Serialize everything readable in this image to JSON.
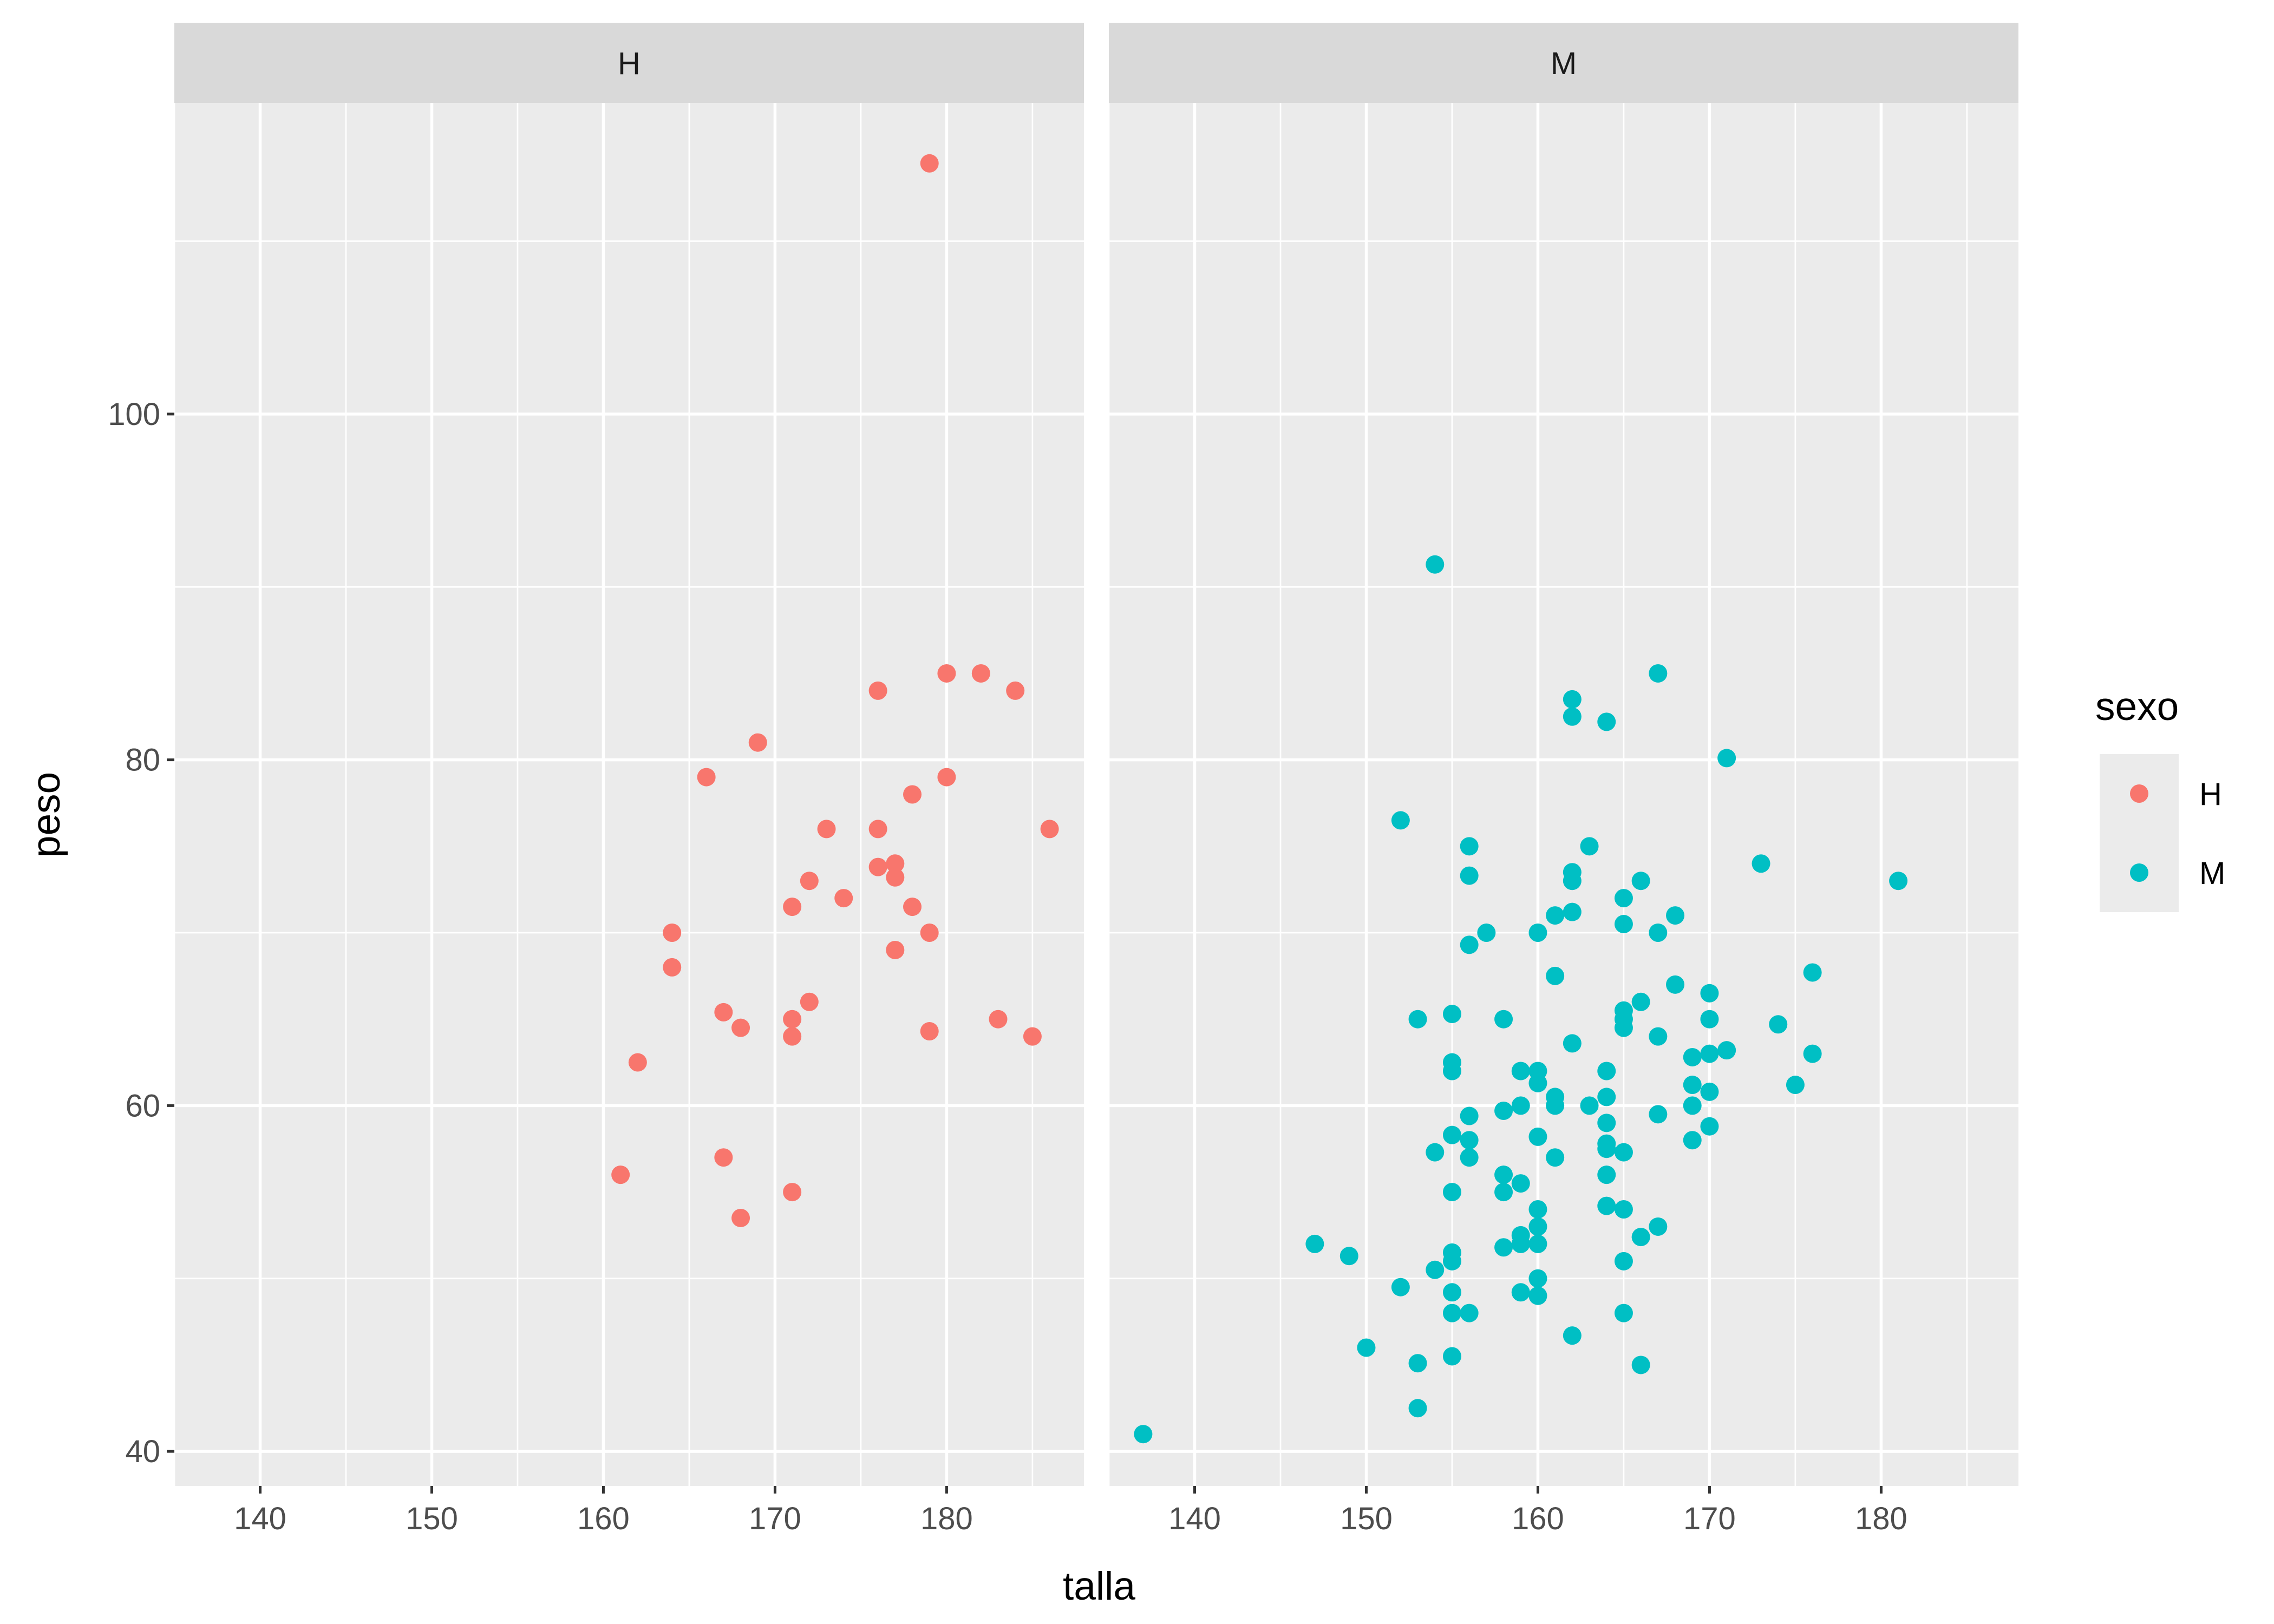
{
  "chart_data": {
    "type": "scatter",
    "facet_by": "sexo",
    "xlabel": "talla",
    "ylabel": "peso",
    "xlim": [
      135,
      188
    ],
    "ylim": [
      38,
      118
    ],
    "x_ticks": [
      140,
      150,
      160,
      170,
      180
    ],
    "y_ticks": [
      40,
      60,
      80,
      100
    ],
    "grid": true,
    "legend": {
      "title": "sexo",
      "position": "right",
      "entries": [
        {
          "label": "H",
          "color": "#F8766D"
        },
        {
          "label": "M",
          "color": "#00BFC4"
        }
      ]
    },
    "panels": [
      {
        "label": "H",
        "series": "H",
        "color": "#F8766D",
        "points": [
          [
            179,
            114.5
          ],
          [
            161,
            56
          ],
          [
            162,
            62.5
          ],
          [
            164,
            70
          ],
          [
            164,
            68
          ],
          [
            166,
            79
          ],
          [
            167,
            65.4
          ],
          [
            167,
            57
          ],
          [
            168,
            64.5
          ],
          [
            168,
            53.5
          ],
          [
            169,
            81
          ],
          [
            171,
            71.5
          ],
          [
            171,
            65
          ],
          [
            171,
            64
          ],
          [
            171,
            55
          ],
          [
            172,
            73
          ],
          [
            172,
            66
          ],
          [
            173,
            76
          ],
          [
            174,
            72
          ],
          [
            176,
            84
          ],
          [
            176,
            76
          ],
          [
            176,
            73.8
          ],
          [
            177,
            74
          ],
          [
            177,
            73.2
          ],
          [
            177,
            69
          ],
          [
            178,
            78
          ],
          [
            178,
            71.5
          ],
          [
            179,
            70
          ],
          [
            179,
            64.3
          ],
          [
            180,
            85
          ],
          [
            180,
            79
          ],
          [
            182,
            85
          ],
          [
            183,
            65
          ],
          [
            184,
            84
          ],
          [
            185,
            64
          ],
          [
            186,
            76
          ]
        ]
      },
      {
        "label": "M",
        "series": "M",
        "color": "#00BFC4",
        "points": [
          [
            154,
            91.3
          ],
          [
            167,
            85
          ],
          [
            162,
            83.5
          ],
          [
            162,
            82.5
          ],
          [
            164,
            82.2
          ],
          [
            171,
            80.1
          ],
          [
            152,
            76.5
          ],
          [
            156,
            75
          ],
          [
            163,
            75
          ],
          [
            173,
            74
          ],
          [
            156,
            73.3
          ],
          [
            162,
            73.5
          ],
          [
            162,
            73
          ],
          [
            166,
            73
          ],
          [
            181,
            73
          ],
          [
            165,
            72
          ],
          [
            161,
            71
          ],
          [
            162,
            71.2
          ],
          [
            168,
            71
          ],
          [
            157,
            70
          ],
          [
            160,
            70
          ],
          [
            165,
            70.5
          ],
          [
            167,
            70
          ],
          [
            156,
            69.3
          ],
          [
            161,
            67.5
          ],
          [
            176,
            67.7
          ],
          [
            168,
            67
          ],
          [
            170,
            66.5
          ],
          [
            166,
            66
          ],
          [
            153,
            65
          ],
          [
            155,
            65.3
          ],
          [
            158,
            65
          ],
          [
            165,
            65.5
          ],
          [
            165,
            65
          ],
          [
            165,
            64.5
          ],
          [
            170,
            65
          ],
          [
            174,
            64.7
          ],
          [
            162,
            63.6
          ],
          [
            167,
            64
          ],
          [
            169,
            62.8
          ],
          [
            170,
            63
          ],
          [
            171,
            63.2
          ],
          [
            176,
            63
          ],
          [
            155,
            62.5
          ],
          [
            155,
            62
          ],
          [
            159,
            62
          ],
          [
            160,
            62
          ],
          [
            160,
            61.3
          ],
          [
            164,
            62
          ],
          [
            169,
            61.2
          ],
          [
            175,
            61.2
          ],
          [
            161,
            60.5
          ],
          [
            161,
            60
          ],
          [
            164,
            60.5
          ],
          [
            159,
            60
          ],
          [
            163,
            60
          ],
          [
            169,
            60
          ],
          [
            170,
            60.8
          ],
          [
            156,
            59.4
          ],
          [
            158,
            59.7
          ],
          [
            164,
            59
          ],
          [
            167,
            59.5
          ],
          [
            170,
            58.8
          ],
          [
            155,
            58.3
          ],
          [
            156,
            58
          ],
          [
            160,
            58.2
          ],
          [
            164,
            57.8
          ],
          [
            164,
            57.5
          ],
          [
            165,
            57.3
          ],
          [
            169,
            58
          ],
          [
            154,
            57.3
          ],
          [
            156,
            57
          ],
          [
            161,
            57
          ],
          [
            158,
            56
          ],
          [
            159,
            55.5
          ],
          [
            164,
            56
          ],
          [
            155,
            55
          ],
          [
            158,
            55
          ],
          [
            160,
            54
          ],
          [
            164,
            54.2
          ],
          [
            165,
            54
          ],
          [
            160,
            53
          ],
          [
            167,
            53
          ],
          [
            159,
            52.5
          ],
          [
            159,
            52
          ],
          [
            160,
            52
          ],
          [
            166,
            52.4
          ],
          [
            147,
            52
          ],
          [
            149,
            51.3
          ],
          [
            155,
            51.5
          ],
          [
            155,
            51
          ],
          [
            158,
            51.8
          ],
          [
            165,
            51
          ],
          [
            154,
            50.5
          ],
          [
            160,
            50
          ],
          [
            152,
            49.5
          ],
          [
            155,
            49.2
          ],
          [
            159,
            49.2
          ],
          [
            160,
            49
          ],
          [
            155,
            48
          ],
          [
            156,
            48
          ],
          [
            165,
            48
          ],
          [
            162,
            46.7
          ],
          [
            150,
            46
          ],
          [
            155,
            45.5
          ],
          [
            153,
            45.1
          ],
          [
            166,
            45
          ],
          [
            153,
            42.5
          ],
          [
            137,
            41
          ]
        ]
      }
    ]
  }
}
